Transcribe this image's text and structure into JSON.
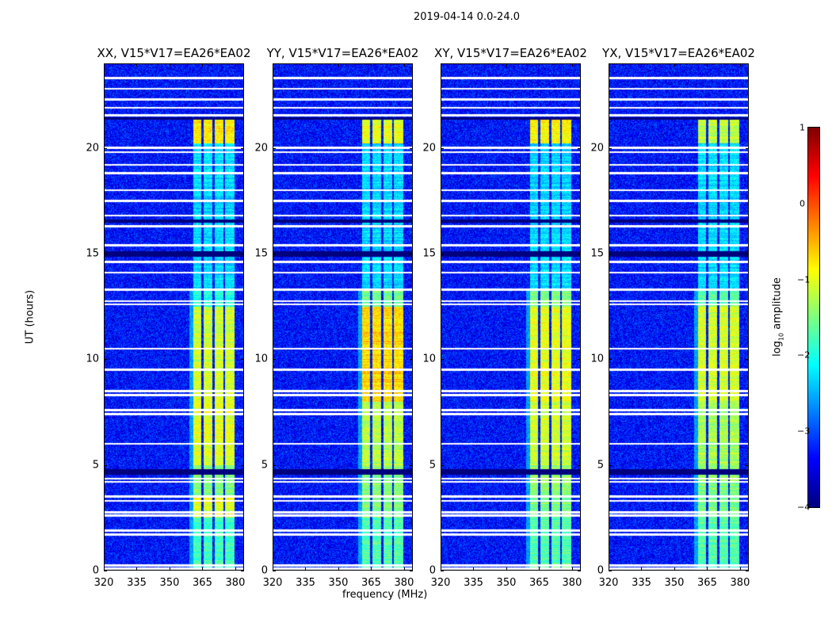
{
  "chart_data": {
    "type": "heatmap",
    "title": "2019-04-14 0.0-24.0",
    "xlabel": "frequency (MHz)",
    "ylabel": "UT (hours)",
    "xlim": [
      320,
      384
    ],
    "ylim": [
      0,
      24
    ],
    "xticks": [
      320,
      335,
      350,
      365,
      380
    ],
    "yticks": [
      0,
      5,
      10,
      15,
      20
    ],
    "colormap": "jet",
    "colorbar": {
      "label_prefix": "log",
      "label_sub": "10",
      "label_suffix": " amplitude",
      "clim": [
        -4,
        1
      ],
      "ticks": [
        1,
        0,
        -1,
        -2,
        -3,
        -4
      ]
    },
    "background_level": -3.3,
    "signal_subbands_mhz": [
      [
        361,
        364.5
      ],
      [
        365.5,
        369.5
      ],
      [
        370.5,
        374.5
      ],
      [
        375.5,
        379.5
      ]
    ],
    "flagged_hours": [
      0.1,
      0.25,
      1.7,
      1.9,
      2.6,
      2.75,
      3.3,
      3.5,
      4.2,
      4.35,
      6.0,
      7.4,
      7.6,
      8.3,
      8.5,
      9.5,
      10.5,
      12.6,
      12.75,
      13.3,
      14.1,
      14.6,
      15.4,
      16.3,
      16.8,
      17.5,
      18.0,
      18.8,
      19.2,
      19.8,
      20.0,
      21.55,
      21.9,
      22.3,
      22.8,
      23.3
    ],
    "zero_hours": [
      [
        4.55,
        4.8
      ],
      [
        14.85,
        15.1
      ],
      [
        16.45,
        16.6
      ],
      [
        21.35,
        21.45
      ]
    ],
    "panels": [
      {
        "title": "XX, V15*V17=EA26*EA02",
        "segments": [
          [
            0,
            2.5,
            -1.8
          ],
          [
            2.5,
            3.5,
            -1.0
          ],
          [
            3.5,
            5,
            -1.5
          ],
          [
            5,
            8,
            -1.0
          ],
          [
            8,
            12.5,
            -1.1
          ],
          [
            12.5,
            13.3,
            -2.0
          ],
          [
            13.3,
            20.2,
            -2.3
          ],
          [
            20.2,
            21.4,
            -0.8
          ]
        ]
      },
      {
        "title": "YY, V15*V17=EA26*EA02",
        "segments": [
          [
            0,
            2.5,
            -1.7
          ],
          [
            2.5,
            3.5,
            -1.5
          ],
          [
            3.5,
            5,
            -1.4
          ],
          [
            5,
            8,
            -1.2
          ],
          [
            8,
            12.5,
            -0.7
          ],
          [
            12.5,
            13.3,
            -1.6
          ],
          [
            13.3,
            20.2,
            -2.3
          ],
          [
            20.2,
            21.4,
            -1.0
          ]
        ]
      },
      {
        "title": "XY, V15*V17=EA26*EA02",
        "segments": [
          [
            0,
            2.5,
            -1.7
          ],
          [
            2.5,
            3.5,
            -1.5
          ],
          [
            3.5,
            5,
            -1.4
          ],
          [
            5,
            8,
            -1.1
          ],
          [
            8,
            12.5,
            -1.0
          ],
          [
            12.5,
            13.3,
            -1.5
          ],
          [
            13.3,
            20.2,
            -2.3
          ],
          [
            20.2,
            21.4,
            -0.8
          ]
        ]
      },
      {
        "title": "YX, V15*V17=EA26*EA02",
        "segments": [
          [
            0,
            2.5,
            -1.7
          ],
          [
            2.5,
            3.5,
            -1.5
          ],
          [
            3.5,
            5,
            -1.5
          ],
          [
            5,
            8,
            -1.3
          ],
          [
            8,
            12.5,
            -1.1
          ],
          [
            12.5,
            13.3,
            -1.6
          ],
          [
            13.3,
            20.2,
            -2.3
          ],
          [
            20.2,
            21.4,
            -1.2
          ]
        ]
      }
    ]
  }
}
